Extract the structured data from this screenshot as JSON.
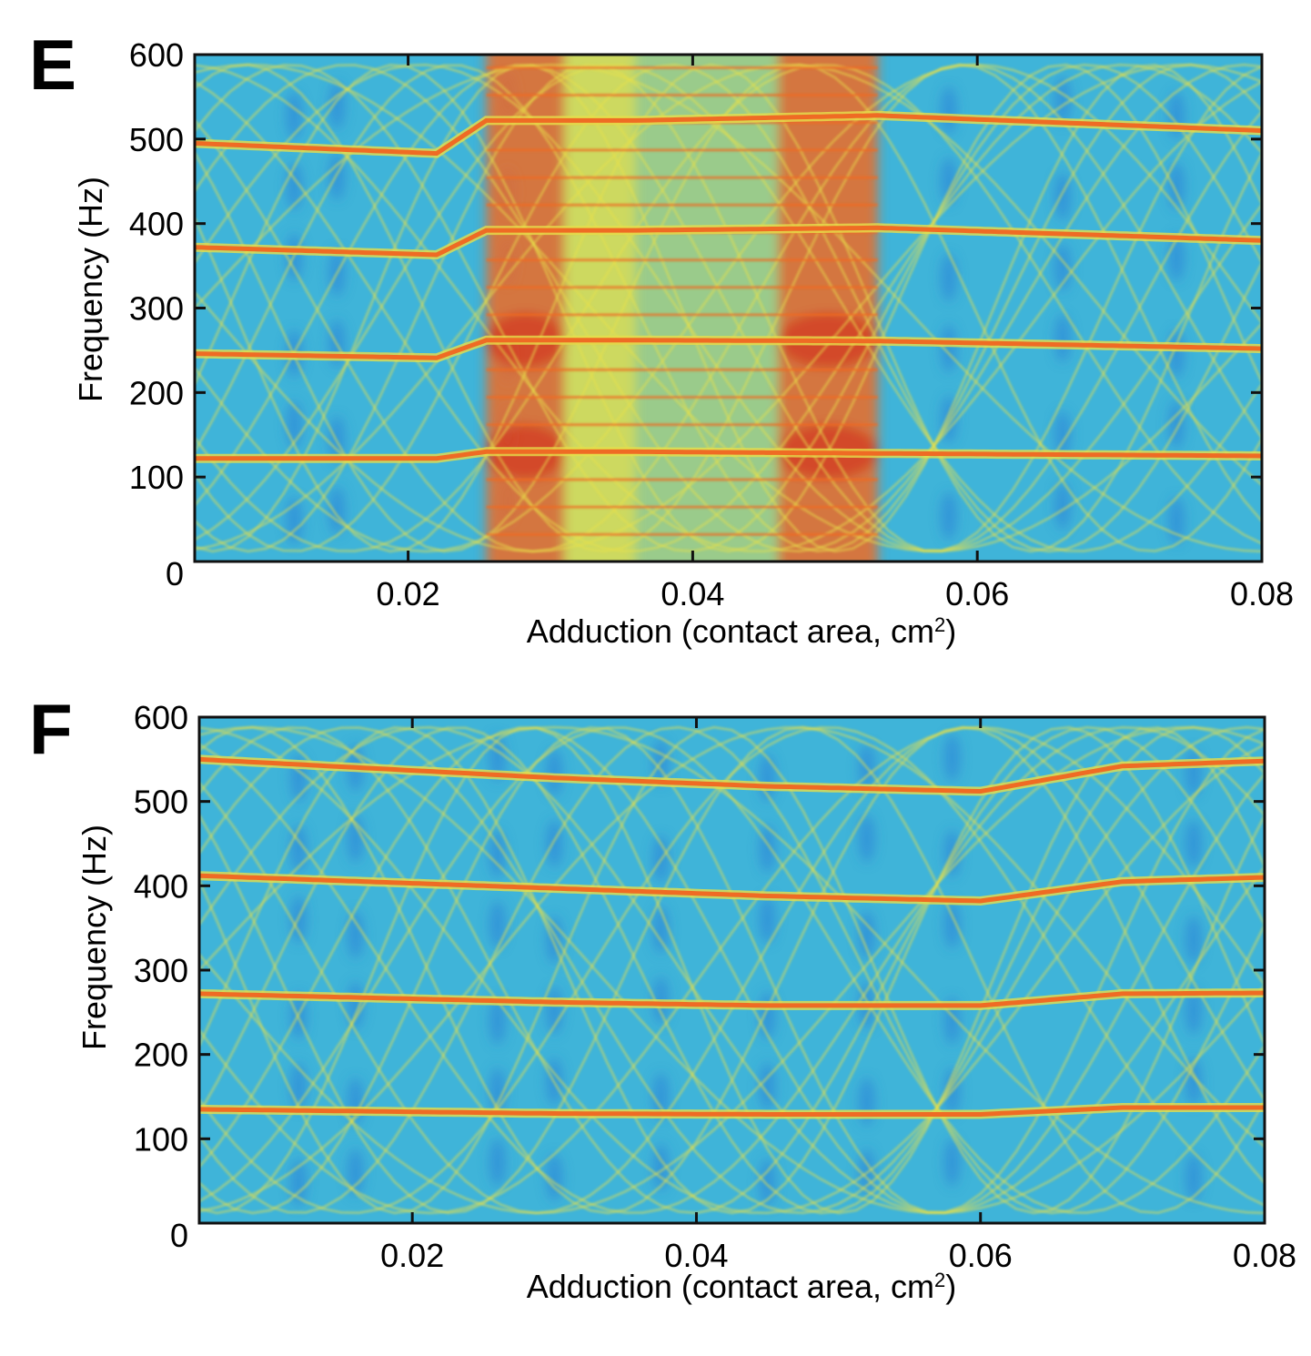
{
  "chart_data": [
    {
      "type": "heatmap",
      "panel_label": "E",
      "xlabel": "Adduction (contact area, cm",
      "xlabel_sup": "2",
      "xlabel_tail": ")",
      "ylabel": "Frequency (Hz)",
      "xlim": [
        0.005,
        0.08
      ],
      "ylim": [
        0,
        600
      ],
      "xticks": [
        0.02,
        0.04,
        0.06,
        0.08
      ],
      "xtick_labels": [
        "0.02",
        "0.04",
        "0.06",
        "0.08"
      ],
      "yticks": [
        0,
        100,
        200,
        300,
        400,
        500,
        600
      ],
      "ytick_labels": [
        "0",
        "100",
        "200",
        "300",
        "400",
        "500",
        "600"
      ],
      "colors": {
        "low": "#2f8fd8",
        "background": "#3fb4d9",
        "mid": "#e6df4a",
        "high": "#ef6b24",
        "peak": "#d42a18"
      },
      "regions": [
        {
          "x_start": 0.0255,
          "x_end": 0.031,
          "intensity": "high"
        },
        {
          "x_start": 0.031,
          "x_end": 0.036,
          "intensity": "mid"
        },
        {
          "x_start": 0.036,
          "x_end": 0.046,
          "intensity": "mixed"
        },
        {
          "x_start": 0.046,
          "x_end": 0.053,
          "intensity": "high"
        }
      ],
      "harmonics": [
        {
          "x": [
            0.005,
            0.022,
            0.0255,
            0.036,
            0.053,
            0.08
          ],
          "y": [
            122,
            122,
            130,
            130,
            128,
            125
          ]
        },
        {
          "x": [
            0.005,
            0.022,
            0.0255,
            0.036,
            0.053,
            0.08
          ],
          "y": [
            246,
            241,
            262,
            262,
            261,
            252
          ]
        },
        {
          "x": [
            0.005,
            0.022,
            0.0255,
            0.036,
            0.053,
            0.08
          ],
          "y": [
            372,
            363,
            392,
            392,
            395,
            380
          ]
        },
        {
          "x": [
            0.005,
            0.022,
            0.0255,
            0.036,
            0.053,
            0.08
          ],
          "y": [
            495,
            483,
            522,
            522,
            528,
            510
          ]
        }
      ],
      "subharmonics_band": [
        0.0255,
        0.053
      ]
    },
    {
      "type": "heatmap",
      "panel_label": "F",
      "xlabel": "Adduction (contact area, cm",
      "xlabel_sup": "2",
      "xlabel_tail": ")",
      "ylabel": "Frequency (Hz)",
      "xlim": [
        0.005,
        0.08
      ],
      "ylim": [
        0,
        600
      ],
      "xticks": [
        0.02,
        0.04,
        0.06,
        0.08
      ],
      "xtick_labels": [
        "0.02",
        "0.04",
        "0.06",
        "0.08"
      ],
      "yticks": [
        0,
        100,
        200,
        300,
        400,
        500,
        600
      ],
      "ytick_labels": [
        "0",
        "100",
        "200",
        "300",
        "400",
        "500",
        "600"
      ],
      "colors": {
        "low": "#2f8fd8",
        "background": "#3fb4d9",
        "mid": "#e6df4a",
        "high": "#ef6b24",
        "peak": "#d42a18"
      },
      "dark_columns": [
        0.012,
        0.016,
        0.026,
        0.03,
        0.0375,
        0.045,
        0.052,
        0.058,
        0.075
      ],
      "harmonics": [
        {
          "x": [
            0.005,
            0.03,
            0.045,
            0.06,
            0.07,
            0.08
          ],
          "y": [
            135,
            130,
            129,
            129,
            137,
            137
          ]
        },
        {
          "x": [
            0.005,
            0.03,
            0.045,
            0.06,
            0.07,
            0.08
          ],
          "y": [
            272,
            262,
            258,
            258,
            272,
            273
          ]
        },
        {
          "x": [
            0.005,
            0.03,
            0.045,
            0.06,
            0.07,
            0.08
          ],
          "y": [
            412,
            397,
            388,
            382,
            405,
            410
          ]
        },
        {
          "x": [
            0.005,
            0.03,
            0.045,
            0.06,
            0.07,
            0.08
          ],
          "y": [
            550,
            528,
            518,
            512,
            542,
            548
          ]
        }
      ]
    }
  ]
}
